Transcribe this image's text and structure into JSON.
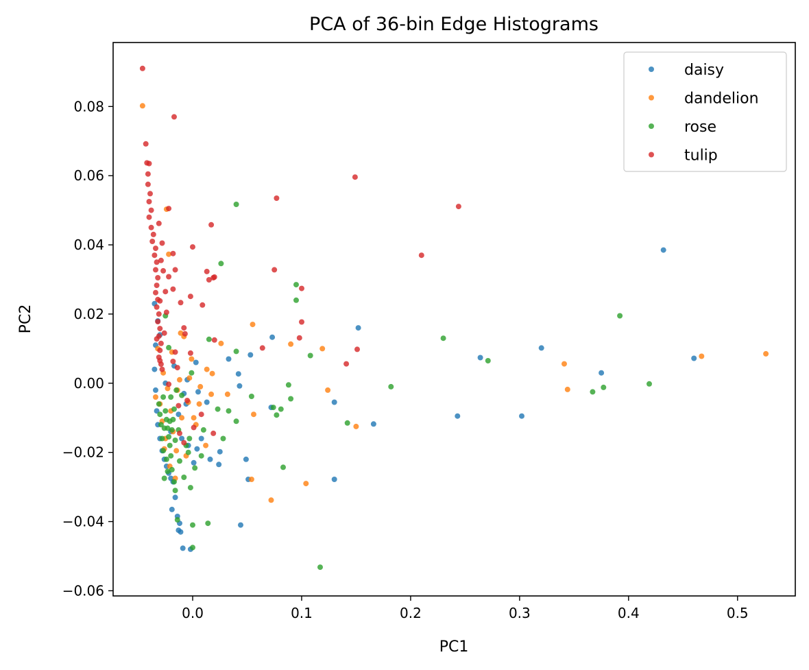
{
  "chart_data": {
    "type": "scatter",
    "title": "PCA of 36-bin Edge Histograms",
    "xlabel": "PC1",
    "ylabel": "PC2",
    "xlim": [
      -0.073,
      0.553
    ],
    "ylim": [
      -0.0615,
      0.0985
    ],
    "xticks": [
      0.0,
      0.1,
      0.2,
      0.3,
      0.4,
      0.5
    ],
    "xtick_labels": [
      "0.0",
      "0.1",
      "0.2",
      "0.3",
      "0.4",
      "0.5"
    ],
    "yticks": [
      -0.06,
      -0.04,
      -0.02,
      0.0,
      0.02,
      0.04,
      0.06,
      0.08
    ],
    "ytick_labels": [
      "−0.06",
      "−0.04",
      "−0.02",
      "0.00",
      "0.02",
      "0.04",
      "0.06",
      "0.08"
    ],
    "grid": false,
    "legend_position": "top-right",
    "series": [
      {
        "name": "daisy",
        "color": "#1f77b4",
        "points": [
          [
            0.432,
            0.0385
          ],
          [
            0.46,
            0.0072
          ],
          [
            0.375,
            0.003
          ],
          [
            0.32,
            0.0102
          ],
          [
            0.302,
            -0.0095
          ],
          [
            0.264,
            0.0074
          ],
          [
            0.243,
            -0.0095
          ],
          [
            0.166,
            -0.0118
          ],
          [
            0.152,
            0.016
          ],
          [
            0.13,
            -0.0055
          ],
          [
            0.13,
            -0.0278
          ],
          [
            0.073,
            0.0133
          ],
          [
            0.072,
            -0.007
          ],
          [
            0.053,
            0.0082
          ],
          [
            0.051,
            -0.0278
          ],
          [
            0.049,
            -0.022
          ],
          [
            0.044,
            -0.041
          ],
          [
            0.043,
            -0.0008
          ],
          [
            0.042,
            0.0027
          ],
          [
            0.033,
            0.007
          ],
          [
            0.025,
            -0.0198
          ],
          [
            0.024,
            -0.0235
          ],
          [
            0.016,
            -0.022
          ],
          [
            0.013,
            -0.0055
          ],
          [
            0.008,
            -0.016
          ],
          [
            0.005,
            -0.0025
          ],
          [
            0.004,
            -0.019
          ],
          [
            0.003,
            0.006
          ],
          [
            0.001,
            -0.023
          ],
          [
            -0.002,
            -0.048
          ],
          [
            -0.004,
            -0.018
          ],
          [
            -0.006,
            -0.006
          ],
          [
            -0.008,
            -0.003
          ],
          [
            -0.009,
            -0.0477
          ],
          [
            -0.011,
            -0.043
          ],
          [
            -0.012,
            -0.0405
          ],
          [
            -0.013,
            -0.0425
          ],
          [
            -0.014,
            -0.0385
          ],
          [
            -0.016,
            -0.033
          ],
          [
            -0.018,
            -0.0285
          ],
          [
            -0.019,
            -0.0365
          ],
          [
            -0.02,
            -0.0275
          ],
          [
            -0.022,
            -0.026
          ],
          [
            -0.024,
            -0.024
          ],
          [
            -0.026,
            -0.022
          ],
          [
            -0.028,
            -0.0195
          ],
          [
            -0.03,
            -0.016
          ],
          [
            -0.032,
            -0.012
          ],
          [
            -0.033,
            -0.008
          ],
          [
            -0.034,
            -0.002
          ],
          [
            -0.035,
            0.004
          ],
          [
            -0.034,
            0.011
          ],
          [
            -0.035,
            0.023
          ],
          [
            -0.032,
            0.018
          ],
          [
            -0.03,
            0.014
          ],
          [
            -0.025,
            0.0
          ],
          [
            -0.02,
            -0.014
          ],
          [
            -0.017,
            0.005
          ],
          [
            -0.013,
            -0.009
          ],
          [
            -0.01,
            -0.016
          ],
          [
            -0.005,
            0.001
          ]
        ]
      },
      {
        "name": "dandelion",
        "color": "#ff7f0e",
        "points": [
          [
            0.526,
            0.0085
          ],
          [
            0.467,
            0.0078
          ],
          [
            0.344,
            -0.0018
          ],
          [
            0.341,
            0.0056
          ],
          [
            0.15,
            -0.0125
          ],
          [
            0.124,
            -0.002
          ],
          [
            0.119,
            0.01
          ],
          [
            0.104,
            -0.029
          ],
          [
            0.09,
            0.0113
          ],
          [
            0.072,
            -0.0338
          ],
          [
            0.056,
            -0.009
          ],
          [
            0.055,
            0.017
          ],
          [
            0.054,
            -0.0278
          ],
          [
            0.032,
            -0.0032
          ],
          [
            0.026,
            0.0115
          ],
          [
            0.018,
            0.0028
          ],
          [
            0.017,
            -0.0032
          ],
          [
            0.013,
            0.004
          ],
          [
            0.012,
            -0.018
          ],
          [
            0.007,
            -0.001
          ],
          [
            0.006,
            -0.006
          ],
          [
            0.003,
            -0.012
          ],
          [
            0.001,
            -0.01
          ],
          [
            -0.001,
            0.007
          ],
          [
            -0.003,
            0.0015
          ],
          [
            -0.006,
            -0.021
          ],
          [
            -0.008,
            0.0135
          ],
          [
            -0.011,
            0.0145
          ],
          [
            -0.012,
            0.001
          ],
          [
            -0.014,
            -0.002
          ],
          [
            -0.016,
            -0.0275
          ],
          [
            -0.018,
            -0.014
          ],
          [
            -0.02,
            -0.008
          ],
          [
            -0.021,
            -0.024
          ],
          [
            -0.022,
            0.0373
          ],
          [
            -0.024,
            0.0503
          ],
          [
            -0.026,
            -0.019
          ],
          [
            -0.028,
            -0.011
          ],
          [
            -0.03,
            -0.006
          ],
          [
            -0.032,
            0.01
          ],
          [
            -0.046,
            0.0802
          ],
          [
            -0.019,
            0.009
          ],
          [
            -0.023,
            -0.0015
          ],
          [
            -0.027,
            0.003
          ],
          [
            -0.015,
            -0.0195
          ],
          [
            -0.01,
            -0.01
          ],
          [
            -0.004,
            -0.0055
          ],
          [
            -0.034,
            -0.004
          ],
          [
            -0.025,
            -0.016
          ]
        ]
      },
      {
        "name": "rose",
        "color": "#2ca02c",
        "points": [
          [
            0.419,
            -0.0002
          ],
          [
            0.392,
            0.0195
          ],
          [
            0.377,
            -0.0012
          ],
          [
            0.367,
            -0.0025
          ],
          [
            0.271,
            0.0065
          ],
          [
            0.23,
            0.013
          ],
          [
            0.182,
            -0.001
          ],
          [
            0.142,
            -0.0115
          ],
          [
            0.117,
            -0.0532
          ],
          [
            0.108,
            0.008
          ],
          [
            0.095,
            0.0285
          ],
          [
            0.095,
            0.024
          ],
          [
            0.09,
            -0.0045
          ],
          [
            0.088,
            -0.0005
          ],
          [
            0.083,
            -0.0243
          ],
          [
            0.081,
            -0.0075
          ],
          [
            0.077,
            -0.0092
          ],
          [
            0.074,
            -0.007
          ],
          [
            0.054,
            -0.0038
          ],
          [
            0.04,
            0.0092
          ],
          [
            0.04,
            0.0517
          ],
          [
            0.04,
            -0.011
          ],
          [
            0.033,
            -0.008
          ],
          [
            0.028,
            -0.016
          ],
          [
            0.026,
            0.0346
          ],
          [
            0.023,
            -0.0075
          ],
          [
            0.015,
            0.0127
          ],
          [
            0.014,
            -0.0405
          ],
          [
            0.01,
            -0.0135
          ],
          [
            0.008,
            -0.021
          ],
          [
            0.002,
            -0.0245
          ],
          [
            0.0,
            -0.0475
          ],
          [
            0.0,
            -0.041
          ],
          [
            -0.002,
            -0.0302
          ],
          [
            -0.001,
            0.003
          ],
          [
            -0.003,
            -0.016
          ],
          [
            -0.008,
            -0.0272
          ],
          [
            -0.012,
            -0.0225
          ],
          [
            -0.014,
            -0.0395
          ],
          [
            -0.016,
            -0.031
          ],
          [
            -0.017,
            -0.0285
          ],
          [
            -0.019,
            -0.025
          ],
          [
            -0.02,
            -0.021
          ],
          [
            -0.021,
            -0.018
          ],
          [
            -0.022,
            -0.0155
          ],
          [
            -0.023,
            -0.013
          ],
          [
            -0.024,
            -0.0105
          ],
          [
            -0.025,
            -0.008
          ],
          [
            -0.026,
            -0.0275
          ],
          [
            -0.027,
            -0.0195
          ],
          [
            -0.028,
            -0.016
          ],
          [
            -0.029,
            -0.012
          ],
          [
            -0.03,
            -0.009
          ],
          [
            -0.031,
            -0.006
          ],
          [
            -0.025,
            0.0195
          ],
          [
            -0.022,
            0.0103
          ],
          [
            -0.02,
            -0.004
          ],
          [
            -0.018,
            -0.0105
          ],
          [
            -0.016,
            -0.0165
          ],
          [
            -0.013,
            -0.0135
          ],
          [
            -0.01,
            -0.0035
          ],
          [
            -0.006,
            -0.018
          ],
          [
            -0.004,
            -0.02
          ],
          [
            -0.015,
            -0.002
          ],
          [
            -0.024,
            -0.022
          ],
          [
            -0.027,
            -0.004
          ],
          [
            -0.019,
            -0.0135
          ],
          [
            -0.023,
            -0.0255
          ],
          [
            -0.021,
            -0.011
          ],
          [
            -0.026,
            -0.013
          ],
          [
            -0.017,
            -0.0075
          ]
        ]
      },
      {
        "name": "tulip",
        "color": "#d62728",
        "points": [
          [
            -0.046,
            0.091
          ],
          [
            -0.017,
            0.077
          ],
          [
            -0.043,
            0.0692
          ],
          [
            -0.042,
            0.0637
          ],
          [
            -0.04,
            0.0635
          ],
          [
            -0.041,
            0.0605
          ],
          [
            -0.041,
            0.0575
          ],
          [
            -0.039,
            0.0548
          ],
          [
            -0.04,
            0.0525
          ],
          [
            -0.038,
            0.05
          ],
          [
            -0.04,
            0.048
          ],
          [
            -0.038,
            0.045
          ],
          [
            -0.036,
            0.043
          ],
          [
            -0.037,
            0.041
          ],
          [
            -0.034,
            0.039
          ],
          [
            -0.035,
            0.037
          ],
          [
            -0.033,
            0.035
          ],
          [
            -0.034,
            0.0328
          ],
          [
            -0.032,
            0.0305
          ],
          [
            -0.033,
            0.0283
          ],
          [
            -0.034,
            0.0262
          ],
          [
            -0.032,
            0.0242
          ],
          [
            -0.033,
            0.022
          ],
          [
            -0.031,
            0.02
          ],
          [
            -0.032,
            0.0178
          ],
          [
            -0.03,
            0.0158
          ],
          [
            -0.031,
            0.0136
          ],
          [
            -0.029,
            0.0115
          ],
          [
            -0.03,
            0.0095
          ],
          [
            -0.031,
            0.0075
          ],
          [
            -0.029,
            0.0055
          ],
          [
            -0.028,
            0.004
          ],
          [
            -0.03,
            0.0065
          ],
          [
            -0.033,
            0.0128
          ],
          [
            -0.03,
            0.0238
          ],
          [
            -0.029,
            0.0355
          ],
          [
            -0.031,
            0.0462
          ],
          [
            -0.028,
            0.0405
          ],
          [
            -0.022,
            0.0505
          ],
          [
            -0.018,
            0.0375
          ],
          [
            -0.022,
            0.0308
          ],
          [
            -0.018,
            0.0272
          ],
          [
            -0.016,
            0.0328
          ],
          [
            -0.011,
            0.0233
          ],
          [
            -0.008,
            0.016
          ],
          [
            -0.007,
            0.0143
          ],
          [
            -0.016,
            0.009
          ],
          [
            -0.014,
            0.0045
          ],
          [
            -0.018,
            0.0063
          ],
          [
            -0.022,
            -0.0003
          ],
          [
            -0.002,
            0.0087
          ],
          [
            -0.002,
            0.0251
          ],
          [
            0.0,
            0.0394
          ],
          [
            0.009,
            0.0226
          ],
          [
            0.013,
            0.0323
          ],
          [
            0.015,
            0.0299
          ],
          [
            0.017,
            0.0458
          ],
          [
            0.019,
            0.0305
          ],
          [
            0.02,
            0.0307
          ],
          [
            0.02,
            0.0125
          ],
          [
            0.077,
            0.0535
          ],
          [
            0.075,
            0.0328
          ],
          [
            0.064,
            0.0102
          ],
          [
            0.098,
            0.0131
          ],
          [
            0.1,
            0.0274
          ],
          [
            0.1,
            0.0177
          ],
          [
            0.149,
            0.0596
          ],
          [
            0.151,
            0.0098
          ],
          [
            0.141,
            0.0056
          ],
          [
            0.21,
            0.037
          ],
          [
            0.244,
            0.0511
          ],
          [
            0.019,
            -0.0145
          ],
          [
            0.008,
            -0.009
          ],
          [
            0.001,
            -0.0128
          ],
          [
            -0.008,
            -0.0172
          ],
          [
            -0.012,
            -0.0145
          ],
          [
            -0.005,
            -0.005
          ],
          [
            -0.013,
            -0.0065
          ],
          [
            -0.024,
            0.0205
          ],
          [
            -0.026,
            0.0145
          ],
          [
            -0.027,
            0.0325
          ],
          [
            -0.025,
            0.0265
          ]
        ]
      }
    ]
  }
}
